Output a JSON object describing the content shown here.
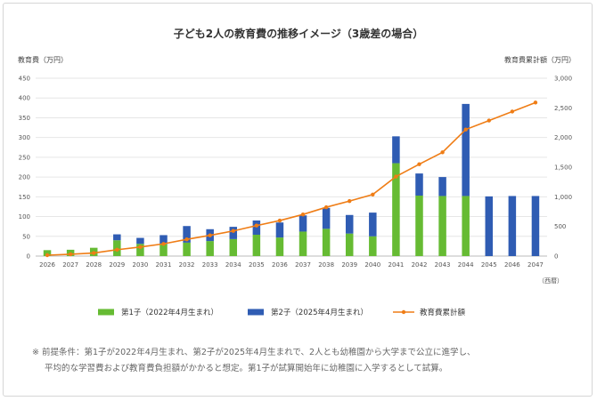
{
  "chart_data": {
    "type": "bar",
    "title": "子ども2人の教育費の推移イメージ（3歳差の場合）",
    "ylabel_left": "教育費（万円）",
    "ylabel_right": "教育費累計額（万円）",
    "xlabel": "（西暦）",
    "ylim_left": [
      0,
      450
    ],
    "ylim_right": [
      0,
      3000
    ],
    "yticks_left": [
      "0",
      "50",
      "100",
      "150",
      "200",
      "250",
      "300",
      "350",
      "400",
      "450"
    ],
    "yticks_right": [
      "0",
      "500",
      "1,000",
      "1,500",
      "2,000",
      "2,500",
      "3,000"
    ],
    "grid": true,
    "legend_position": "bottom",
    "categories": [
      "2026",
      "2027",
      "2028",
      "2029",
      "2030",
      "2031",
      "2032",
      "2033",
      "2034",
      "2035",
      "2036",
      "2037",
      "2038",
      "2039",
      "2040",
      "2041",
      "2042",
      "2043",
      "2044",
      "2045",
      "2046",
      "2047"
    ],
    "series": [
      {
        "name": "第1子（2022年4月生まれ）",
        "type": "bar",
        "stack": "edu",
        "color": "#66bb33",
        "values": [
          15,
          16,
          21,
          40,
          31,
          30,
          34,
          38,
          43,
          54,
          47,
          62,
          69,
          57,
          50,
          235,
          153,
          152,
          152,
          0,
          0,
          0
        ]
      },
      {
        "name": "第2子（2025年4月生まれ）",
        "type": "bar",
        "stack": "edu",
        "color": "#2f5cb3",
        "values": [
          0,
          0,
          0,
          15,
          15,
          23,
          42,
          30,
          31,
          36,
          38,
          41,
          53,
          47,
          60,
          68,
          56,
          48,
          233,
          151,
          152,
          152
        ]
      },
      {
        "name": "教育費累計額",
        "type": "line",
        "axis": "right",
        "color": "#ef7d16",
        "values": [
          15,
          31,
          52,
          107,
          153,
          206,
          282,
          350,
          424,
          514,
          599,
          702,
          824,
          928,
          1038,
          1341,
          1550,
          1750,
          2135,
          2286,
          2438,
          2590
        ]
      }
    ]
  },
  "note": {
    "line1": "※ 前提条件：第1子が2022年4月生まれ、第2子が2025年4月生まれで、2人とも幼稚園から大学まで公立に進学し、",
    "line2": "平均的な学習費および教育費負担額がかかると想定。第1子が試算開始年に幼稚園に入学するとして試算。"
  }
}
